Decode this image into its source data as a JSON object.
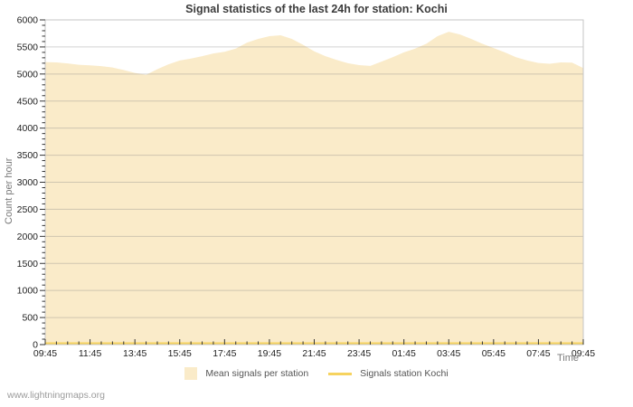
{
  "title": "Signal statistics of the last 24h for station: Kochi",
  "watermark": "www.lightningmaps.org",
  "legend": [
    {
      "label": "Mean signals per station",
      "type": "area",
      "color": "#faebc9"
    },
    {
      "label": "Signals station Kochi",
      "type": "line",
      "color": "#f6d35f"
    }
  ],
  "colors": {
    "grid": "rgba(130,130,130,0.35)",
    "plot_border": "#c6c6c6",
    "tick": "#333333",
    "tick_label": "#222222"
  },
  "chart_data": {
    "type": "area",
    "title": "Signal statistics of the last 24h for station: Kochi",
    "xlabel": "Time",
    "ylabel": "Count per hour",
    "ylim": [
      0,
      6000
    ],
    "y_tick_step": 500,
    "y_minor_step": 100,
    "y_tick_labels": [
      "0",
      "500",
      "1000",
      "1500",
      "2000",
      "2500",
      "3000",
      "3500",
      "4000",
      "4500",
      "5000",
      "5500",
      "6000"
    ],
    "x_tick_labels": [
      "09:45",
      "11:45",
      "13:45",
      "15:45",
      "17:45",
      "19:45",
      "21:45",
      "23:45",
      "01:45",
      "03:45",
      "05:45",
      "07:45",
      "09:45"
    ],
    "x_step_minutes": 30,
    "x_major_every": 4,
    "grid": true,
    "legend_position": "bottom",
    "series": [
      {
        "name": "Mean signals per station",
        "type": "area",
        "color": "#faebc9",
        "values": [
          5220,
          5215,
          5195,
          5170,
          5160,
          5145,
          5120,
          5075,
          5020,
          4985,
          5090,
          5180,
          5250,
          5285,
          5330,
          5380,
          5410,
          5470,
          5580,
          5650,
          5700,
          5715,
          5650,
          5540,
          5420,
          5330,
          5260,
          5200,
          5165,
          5150,
          5230,
          5310,
          5400,
          5470,
          5560,
          5700,
          5780,
          5730,
          5650,
          5560,
          5480,
          5400,
          5310,
          5250,
          5205,
          5190,
          5215,
          5210,
          5110
        ]
      },
      {
        "name": "Signals station Kochi",
        "type": "line",
        "color": "#f6d35f",
        "values": [
          25,
          25,
          25,
          25,
          25,
          25,
          25,
          25,
          25,
          25,
          25,
          25,
          25,
          25,
          25,
          25,
          25,
          25,
          25,
          25,
          25,
          25,
          25,
          25,
          25,
          25,
          25,
          25,
          25,
          25,
          25,
          25,
          25,
          25,
          25,
          25,
          25,
          25,
          25,
          25,
          25,
          25,
          25,
          25,
          25,
          25,
          25,
          25,
          25
        ]
      }
    ]
  }
}
